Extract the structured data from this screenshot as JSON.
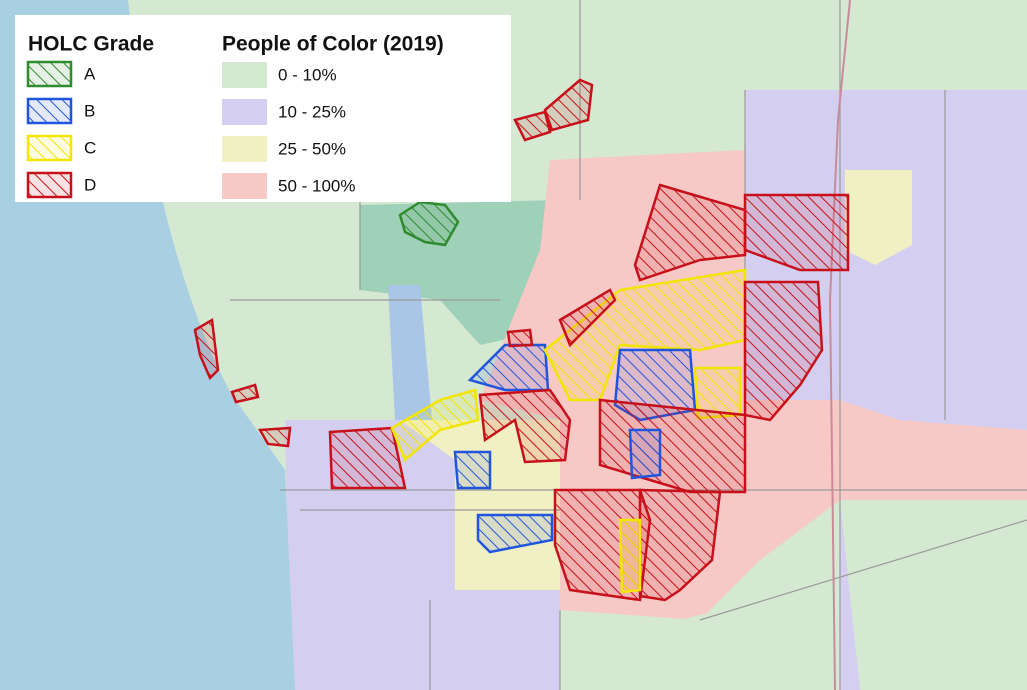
{
  "legend": {
    "holc": {
      "title": "HOLC Grade",
      "items": [
        {
          "label": "A",
          "color": "#2e8b2e"
        },
        {
          "label": "B",
          "color": "#2255dd"
        },
        {
          "label": "C",
          "color": "#f2e600"
        },
        {
          "label": "D",
          "color": "#c8101a"
        }
      ]
    },
    "poc": {
      "title": "People of Color (2019)",
      "items": [
        {
          "label": "0 - 10%",
          "color": "#d5e8d2"
        },
        {
          "label": "10 - 25%",
          "color": "#d4cff0"
        },
        {
          "label": "25 - 50%",
          "color": "#f1efc4"
        },
        {
          "label": "50 - 100%",
          "color": "#f6c8c6"
        }
      ]
    }
  }
}
